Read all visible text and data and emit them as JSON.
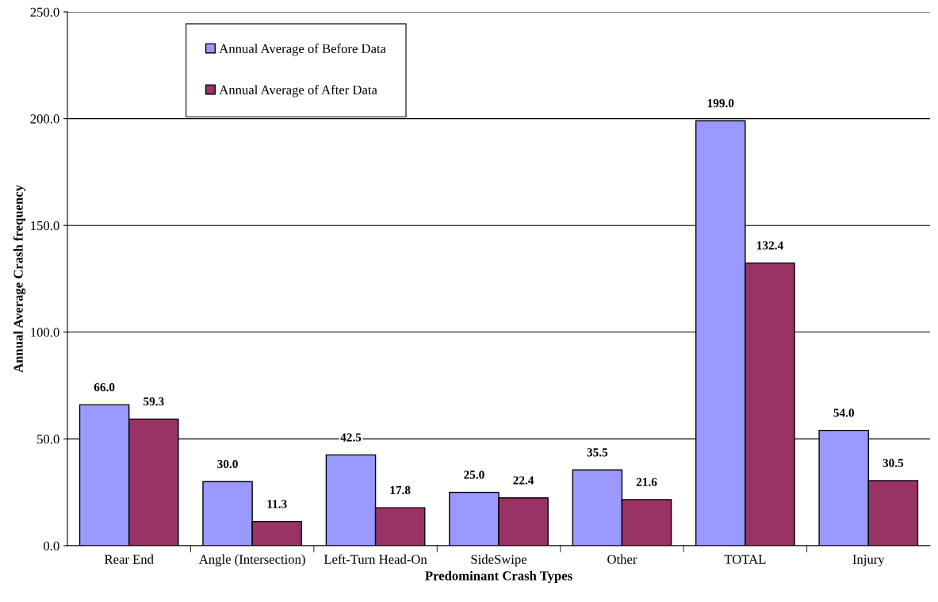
{
  "chart_data": {
    "type": "bar",
    "xlabel": "Predominant Crash Types",
    "ylabel": "Annual Average Crash frequency",
    "categories": [
      "Rear End",
      "Angle (Intersection)",
      "Left-Turn Head-On",
      "SideSwipe",
      "Other",
      "TOTAL",
      "Injury"
    ],
    "series": [
      {
        "name": "Annual Average of Before Data",
        "color": "#9999ff",
        "values": [
          66.0,
          30.0,
          42.5,
          25.0,
          35.5,
          199.0,
          54.0
        ],
        "value_labels": [
          "66.0",
          "30.0",
          "42.5",
          "25.0",
          "35.5",
          "199.0",
          "54.0"
        ]
      },
      {
        "name": "Annual Average of After Data",
        "color": "#993366",
        "values": [
          59.3,
          11.3,
          17.8,
          22.4,
          21.6,
          132.4,
          30.5
        ],
        "value_labels": [
          "59.3",
          "11.3",
          "17.8",
          "22.4",
          "21.6",
          "132.4",
          "30.5"
        ]
      }
    ],
    "ylim": [
      0,
      250
    ],
    "yticks": [
      {
        "value": 0,
        "label": "0.0"
      },
      {
        "value": 50,
        "label": "50.0"
      },
      {
        "value": 100,
        "label": "100.0"
      },
      {
        "value": 150,
        "label": "150.0"
      },
      {
        "value": 200,
        "label": "200.0"
      },
      {
        "value": 250,
        "label": "250.0"
      }
    ],
    "grid": "y",
    "legend": "top"
  }
}
